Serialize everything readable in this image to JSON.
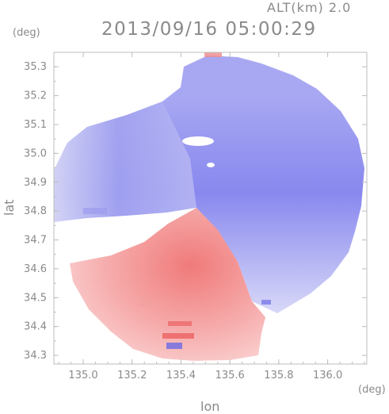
{
  "header": {
    "altitude": "ALT(km) 2.0",
    "timestamp": "2013/09/16 05:00:29"
  },
  "axes": {
    "x_title": "lon",
    "y_title": "lat",
    "x_unit": "(deg)",
    "y_unit": "(deg)",
    "x_ticks": [
      "135.0",
      "135.2",
      "135.4",
      "135.6",
      "135.8",
      "136.0"
    ],
    "y_ticks": [
      "35.3",
      "35.2",
      "35.1",
      "35.0",
      "34.9",
      "34.8",
      "34.7",
      "34.6",
      "34.5",
      "34.4",
      "34.3"
    ]
  },
  "chart_data": {
    "type": "heatmap",
    "xlim": [
      134.88,
      136.16
    ],
    "ylim": [
      34.27,
      35.35
    ],
    "grid": false,
    "colors": {
      "negative": "#6f6ff0",
      "neutral": "#f4f4fa",
      "positive": "#f07575",
      "frame": "#bdbdbd"
    }
  }
}
